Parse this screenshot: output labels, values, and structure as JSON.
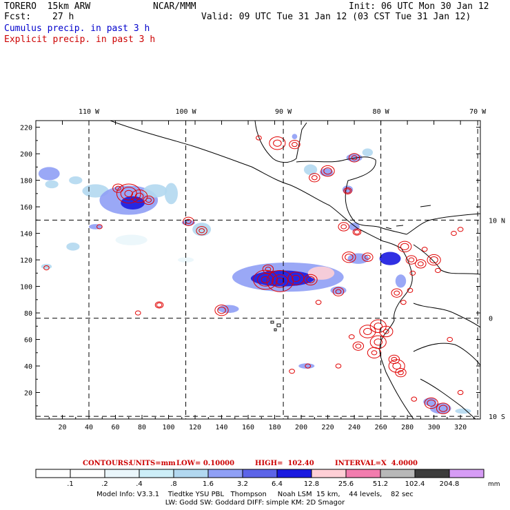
{
  "header": {
    "model": "TORERO  15km ARW",
    "org": "NCAR/MMM",
    "init": "Init: 06 UTC Mon 30 Jan 12",
    "fcst_label": "Fcst:",
    "fcst_value": "27 h",
    "valid": "Valid: 09 UTC Tue 31 Jan 12 (03 CST Tue 31 Jan 12)",
    "line_cumulus": "Cumulus precip. in past 3 h",
    "line_explicit": "Explicit precip. in past 3 h"
  },
  "colors": {
    "cumulus_text": "#0000cc",
    "explicit_text": "#cc0000",
    "contour": "#e00000",
    "coast": "#000000"
  },
  "contours_info": {
    "label": "CONTOURS:",
    "units": "UNITS=mm",
    "low": "LOW= 0.10000",
    "high": "HIGH=  102.40",
    "interval": "INTERVAL=X  4.0000"
  },
  "colorbar": {
    "unit": "mm",
    "labels": [
      ".1",
      ".2",
      ".4",
      ".8",
      "1.6",
      "3.2",
      "6.4",
      "12.8",
      "25.6",
      "51.2",
      "102.4",
      "204.8"
    ],
    "colors": [
      "#ffffff",
      "#ffffff",
      "#eaf6fb",
      "#cdeef8",
      "#b2d8f0",
      "#8f9ff5",
      "#5c64e8",
      "#1a1ae0",
      "#ffcfd6",
      "#f27cae",
      "#b8b8b8",
      "#3c3c3c",
      "#d69cf5"
    ]
  },
  "footer": {
    "line1": "Model Info: V3.3.1    Tiedtke YSU PBL   Thompson     Noah LSM  15 km,    44 levels,    82 sec",
    "line2": "LW: Godd SW: Goddard DIFF: simple KM: 2D Smagor"
  },
  "chart_data": {
    "type": "map",
    "title": "Cumulus / Explicit precip. in past 3 h",
    "xlim": [
      0,
      335
    ],
    "ylim": [
      0,
      225
    ],
    "x_ticks": [
      20,
      40,
      60,
      80,
      100,
      120,
      140,
      160,
      180,
      200,
      220,
      240,
      260,
      280,
      300,
      320
    ],
    "x_tick_labels": [
      "20",
      "40",
      "60",
      "80",
      "100",
      "120",
      "140",
      "160",
      "180",
      "200",
      "220",
      "240",
      "260",
      "280",
      "300",
      "320"
    ],
    "y_ticks": [
      20,
      40,
      60,
      80,
      100,
      120,
      140,
      160,
      180,
      200,
      220
    ],
    "y_tick_labels": [
      "20",
      "40",
      "60",
      "80",
      "100",
      "120",
      "140",
      "160",
      "180",
      "200",
      "220"
    ],
    "lon_lines": [
      {
        "x": 40,
        "label": "110 W"
      },
      {
        "x": 113,
        "label": "100 W"
      },
      {
        "x": 186.5,
        "label": "90 W"
      },
      {
        "x": 260,
        "label": "80 W"
      },
      {
        "x": 333,
        "label": "70 W"
      }
    ],
    "lat_lines": [
      {
        "y": 150,
        "label": "10 N"
      },
      {
        "y": 76,
        "label": "0"
      },
      {
        "y": 2,
        "label": "10 S"
      }
    ],
    "cumulus_blobs": [
      {
        "x": 10,
        "y": 185,
        "rx": 8,
        "ry": 5,
        "level": 5
      },
      {
        "x": 12,
        "y": 177,
        "rx": 5,
        "ry": 3,
        "level": 4
      },
      {
        "x": 30,
        "y": 180,
        "rx": 5,
        "ry": 3,
        "level": 4
      },
      {
        "x": 45,
        "y": 172,
        "rx": 10,
        "ry": 5,
        "level": 4
      },
      {
        "x": 70,
        "y": 165,
        "rx": 22,
        "ry": 11,
        "level": 5
      },
      {
        "x": 73,
        "y": 163,
        "rx": 9,
        "ry": 5,
        "level": 7
      },
      {
        "x": 90,
        "y": 172,
        "rx": 9,
        "ry": 5,
        "level": 4
      },
      {
        "x": 102,
        "y": 170,
        "rx": 5,
        "ry": 8,
        "level": 4
      },
      {
        "x": 115,
        "y": 148,
        "rx": 5,
        "ry": 2,
        "level": 5
      },
      {
        "x": 125,
        "y": 143,
        "rx": 7,
        "ry": 5,
        "level": 4
      },
      {
        "x": 45,
        "y": 145,
        "rx": 5,
        "ry": 2,
        "level": 5
      },
      {
        "x": 28,
        "y": 130,
        "rx": 5,
        "ry": 3,
        "level": 4
      },
      {
        "x": 8,
        "y": 115,
        "rx": 4,
        "ry": 2,
        "level": 4
      },
      {
        "x": 72,
        "y": 135,
        "rx": 12,
        "ry": 4,
        "level": 2
      },
      {
        "x": 190,
        "y": 107,
        "rx": 42,
        "ry": 11,
        "level": 5
      },
      {
        "x": 186,
        "y": 106,
        "rx": 24,
        "ry": 6,
        "level": 7
      },
      {
        "x": 215,
        "y": 110,
        "rx": 10,
        "ry": 5,
        "level": 8
      },
      {
        "x": 228,
        "y": 97,
        "rx": 6,
        "ry": 3,
        "level": 5
      },
      {
        "x": 145,
        "y": 83,
        "rx": 8,
        "ry": 3,
        "level": 5
      },
      {
        "x": 243,
        "y": 121,
        "rx": 8,
        "ry": 4,
        "level": 5
      },
      {
        "x": 267,
        "y": 121,
        "rx": 8,
        "ry": 5,
        "level": 7
      },
      {
        "x": 207,
        "y": 188,
        "rx": 5,
        "ry": 4,
        "level": 4
      },
      {
        "x": 219,
        "y": 186,
        "rx": 5,
        "ry": 3,
        "level": 5
      },
      {
        "x": 240,
        "y": 197,
        "rx": 6,
        "ry": 3,
        "level": 5
      },
      {
        "x": 250,
        "y": 201,
        "rx": 4,
        "ry": 3,
        "level": 4
      },
      {
        "x": 235,
        "y": 173,
        "rx": 4,
        "ry": 3,
        "level": 5
      },
      {
        "x": 195,
        "y": 213,
        "rx": 2,
        "ry": 2,
        "level": 5
      },
      {
        "x": 240,
        "y": 145,
        "rx": 4,
        "ry": 3,
        "level": 5
      },
      {
        "x": 275,
        "y": 104,
        "rx": 4,
        "ry": 5,
        "level": 5
      },
      {
        "x": 204,
        "y": 40,
        "rx": 6,
        "ry": 2,
        "level": 5
      },
      {
        "x": 305,
        "y": 8,
        "rx": 8,
        "ry": 4,
        "level": 5
      },
      {
        "x": 297,
        "y": 13,
        "rx": 5,
        "ry": 3,
        "level": 5
      },
      {
        "x": 322,
        "y": 6,
        "rx": 6,
        "ry": 2,
        "level": 4
      },
      {
        "x": 113,
        "y": 120,
        "rx": 6,
        "ry": 2,
        "level": 2
      }
    ],
    "explicit_cells": [
      {
        "x": 70,
        "y": 170,
        "r": [
          3,
          6,
          9
        ]
      },
      {
        "x": 78,
        "y": 168,
        "r": [
          3,
          6
        ]
      },
      {
        "x": 62,
        "y": 174,
        "r": [
          2,
          4
        ]
      },
      {
        "x": 85,
        "y": 165,
        "r": [
          2,
          4
        ]
      },
      {
        "x": 115,
        "y": 149,
        "r": [
          2,
          4
        ]
      },
      {
        "x": 125,
        "y": 142,
        "r": [
          2,
          4
        ]
      },
      {
        "x": 48,
        "y": 145,
        "r": [
          2
        ]
      },
      {
        "x": 8,
        "y": 114,
        "r": [
          2
        ]
      },
      {
        "x": 93,
        "y": 86,
        "r": [
          2,
          3
        ]
      },
      {
        "x": 77,
        "y": 80,
        "r": [
          2
        ]
      },
      {
        "x": 140,
        "y": 82,
        "r": [
          3,
          5
        ]
      },
      {
        "x": 173,
        "y": 105,
        "r": [
          3,
          6,
          9
        ]
      },
      {
        "x": 184,
        "y": 104,
        "r": [
          3,
          6,
          10
        ]
      },
      {
        "x": 196,
        "y": 106,
        "r": [
          3,
          6
        ]
      },
      {
        "x": 207,
        "y": 105,
        "r": [
          3,
          5
        ]
      },
      {
        "x": 175,
        "y": 113,
        "r": [
          2,
          4
        ]
      },
      {
        "x": 228,
        "y": 96,
        "r": [
          2,
          4
        ]
      },
      {
        "x": 213,
        "y": 88,
        "r": [
          2
        ]
      },
      {
        "x": 168,
        "y": 212,
        "r": [
          2
        ]
      },
      {
        "x": 182,
        "y": 208,
        "r": [
          3,
          6
        ]
      },
      {
        "x": 195,
        "y": 207,
        "r": [
          2,
          4
        ]
      },
      {
        "x": 220,
        "y": 187,
        "r": [
          3,
          5
        ]
      },
      {
        "x": 210,
        "y": 182,
        "r": [
          2,
          4
        ]
      },
      {
        "x": 240,
        "y": 197,
        "r": [
          2,
          4
        ]
      },
      {
        "x": 235,
        "y": 172,
        "r": [
          2,
          3
        ]
      },
      {
        "x": 232,
        "y": 145,
        "r": [
          2,
          4
        ]
      },
      {
        "x": 242,
        "y": 141,
        "r": [
          2,
          3
        ]
      },
      {
        "x": 236,
        "y": 122,
        "r": [
          3,
          5
        ]
      },
      {
        "x": 250,
        "y": 122,
        "r": [
          2,
          4
        ]
      },
      {
        "x": 278,
        "y": 130,
        "r": [
          3,
          5
        ]
      },
      {
        "x": 283,
        "y": 120,
        "r": [
          2,
          4
        ]
      },
      {
        "x": 284,
        "y": 110,
        "r": [
          2
        ]
      },
      {
        "x": 290,
        "y": 117,
        "r": [
          2,
          4
        ]
      },
      {
        "x": 300,
        "y": 120,
        "r": [
          3,
          5
        ]
      },
      {
        "x": 303,
        "y": 112,
        "r": [
          2
        ]
      },
      {
        "x": 293,
        "y": 128,
        "r": [
          2
        ]
      },
      {
        "x": 315,
        "y": 140,
        "r": [
          2
        ]
      },
      {
        "x": 320,
        "y": 143,
        "r": [
          2
        ]
      },
      {
        "x": 272,
        "y": 95,
        "r": [
          2,
          4
        ]
      },
      {
        "x": 282,
        "y": 97,
        "r": [
          2
        ]
      },
      {
        "x": 277,
        "y": 88,
        "r": [
          2
        ]
      },
      {
        "x": 258,
        "y": 70,
        "r": [
          3,
          6
        ]
      },
      {
        "x": 250,
        "y": 66,
        "r": [
          3,
          6
        ]
      },
      {
        "x": 264,
        "y": 66,
        "r": [
          2,
          5
        ]
      },
      {
        "x": 258,
        "y": 58,
        "r": [
          3,
          6
        ]
      },
      {
        "x": 255,
        "y": 50,
        "r": [
          2,
          5
        ]
      },
      {
        "x": 270,
        "y": 45,
        "r": [
          2,
          4
        ]
      },
      {
        "x": 272,
        "y": 40,
        "r": [
          3,
          6
        ]
      },
      {
        "x": 275,
        "y": 35,
        "r": [
          2,
          4
        ]
      },
      {
        "x": 243,
        "y": 55,
        "r": [
          2,
          4
        ]
      },
      {
        "x": 238,
        "y": 62,
        "r": [
          2
        ]
      },
      {
        "x": 228,
        "y": 40,
        "r": [
          2
        ]
      },
      {
        "x": 205,
        "y": 40,
        "r": [
          2
        ]
      },
      {
        "x": 193,
        "y": 36,
        "r": [
          2
        ]
      },
      {
        "x": 298,
        "y": 12,
        "r": [
          3,
          5
        ]
      },
      {
        "x": 307,
        "y": 8,
        "r": [
          3,
          5
        ]
      },
      {
        "x": 285,
        "y": 15,
        "r": [
          2
        ]
      },
      {
        "x": 320,
        "y": 20,
        "r": [
          2
        ]
      },
      {
        "x": 312,
        "y": 60,
        "r": [
          2
        ]
      }
    ]
  }
}
